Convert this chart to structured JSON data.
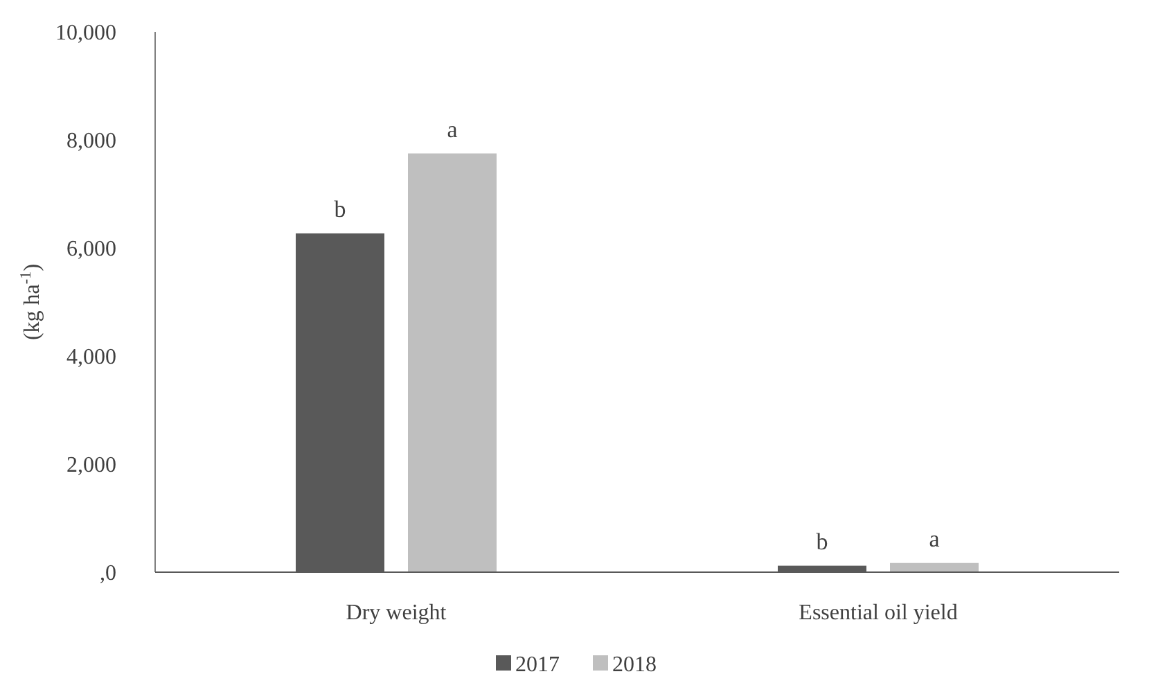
{
  "chart_data": {
    "type": "bar",
    "ylabel": "(kg ha$^{-1}$)",
    "categories": [
      "Dry weight",
      "Essential oil yield"
    ],
    "series": [
      {
        "name": "2017",
        "color": "#595959",
        "values": [
          6270,
          120
        ]
      },
      {
        "name": "2018",
        "color": "#bfbfbf",
        "values": [
          7750,
          170
        ]
      }
    ],
    "ylim": [
      0,
      10000
    ],
    "yticks": [
      {
        "value": 0,
        "label": ",0"
      },
      {
        "value": 2000,
        "label": "2,000"
      },
      {
        "value": 4000,
        "label": "4,000"
      },
      {
        "value": 6000,
        "label": "6,000"
      },
      {
        "value": 8000,
        "label": "8,000"
      },
      {
        "value": 10000,
        "label": "10,000"
      }
    ],
    "annotations": [
      "b",
      "a",
      "b",
      "a"
    ],
    "grid": false,
    "legend": "bottom"
  }
}
